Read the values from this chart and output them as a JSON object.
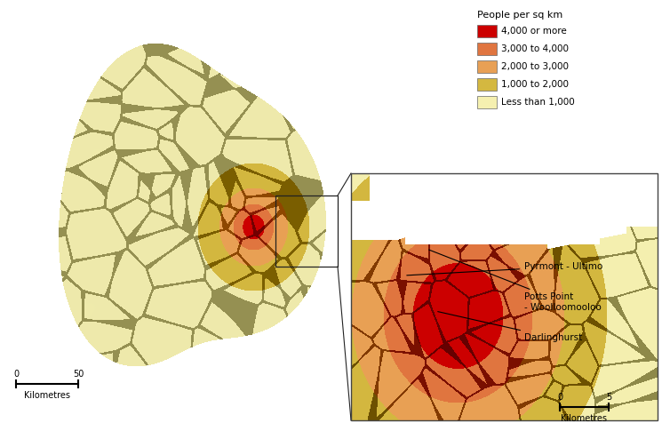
{
  "legend_title": "People per sq km",
  "legend_items": [
    {
      "label": "4,000 or more",
      "color": "#cc0000"
    },
    {
      "label": "3,000 to 4,000",
      "color": "#e07540"
    },
    {
      "label": "2,000 to 3,000",
      "color": "#e8a055"
    },
    {
      "label": "1,000 to 2,000",
      "color": "#d4b840"
    },
    {
      "label": "Less than 1,000",
      "color": "#f5f0b0"
    }
  ],
  "background_color": "#ffffff",
  "colors": {
    "red": "#cc0000",
    "dark_orange": "#e07540",
    "orange": "#e8a055",
    "yellow": "#d4b840",
    "pale": "#f5f0b0",
    "white": "#ffffff"
  }
}
